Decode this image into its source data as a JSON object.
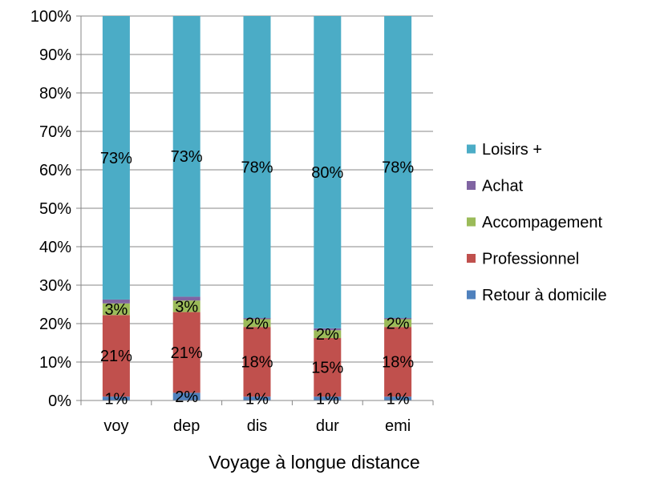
{
  "chart_data": {
    "type": "bar",
    "stacked": "percent",
    "xlabel": "Voyage à longue distance",
    "ylabel": "",
    "ylim": [
      0,
      100
    ],
    "y_ticks": [
      "0%",
      "10%",
      "20%",
      "30%",
      "40%",
      "50%",
      "60%",
      "70%",
      "80%",
      "90%",
      "100%"
    ],
    "grid": true,
    "legend_position": "right",
    "categories": [
      "voy",
      "dep",
      "dis",
      "dur",
      "emi"
    ],
    "series": [
      {
        "name": "Retour à domicile",
        "color": "#4F81BD",
        "values": [
          1,
          2,
          1,
          1,
          1
        ],
        "labels": [
          "1%",
          "2%",
          "1%",
          "1%",
          "1%"
        ]
      },
      {
        "name": "Professionnel",
        "color": "#C0504D",
        "values": [
          21,
          21,
          18,
          15,
          18
        ],
        "labels": [
          "21%",
          "21%",
          "18%",
          "15%",
          "18%"
        ]
      },
      {
        "name": "Accompagement",
        "color": "#9BBB59",
        "values": [
          3,
          3,
          2,
          2,
          2
        ],
        "labels": [
          "3%",
          "3%",
          "2%",
          "2%",
          "2%"
        ]
      },
      {
        "name": "Achat",
        "color": "#8064A2",
        "values": [
          1,
          1,
          0.3,
          0.5,
          0.3
        ],
        "labels": [
          "",
          "",
          "",
          "",
          ""
        ]
      },
      {
        "name": "Loisirs +",
        "color": "#4BACC6",
        "values": [
          73,
          73,
          78,
          80,
          78
        ],
        "labels": [
          "73%",
          "73%",
          "78%",
          "80%",
          "78%"
        ]
      }
    ]
  }
}
